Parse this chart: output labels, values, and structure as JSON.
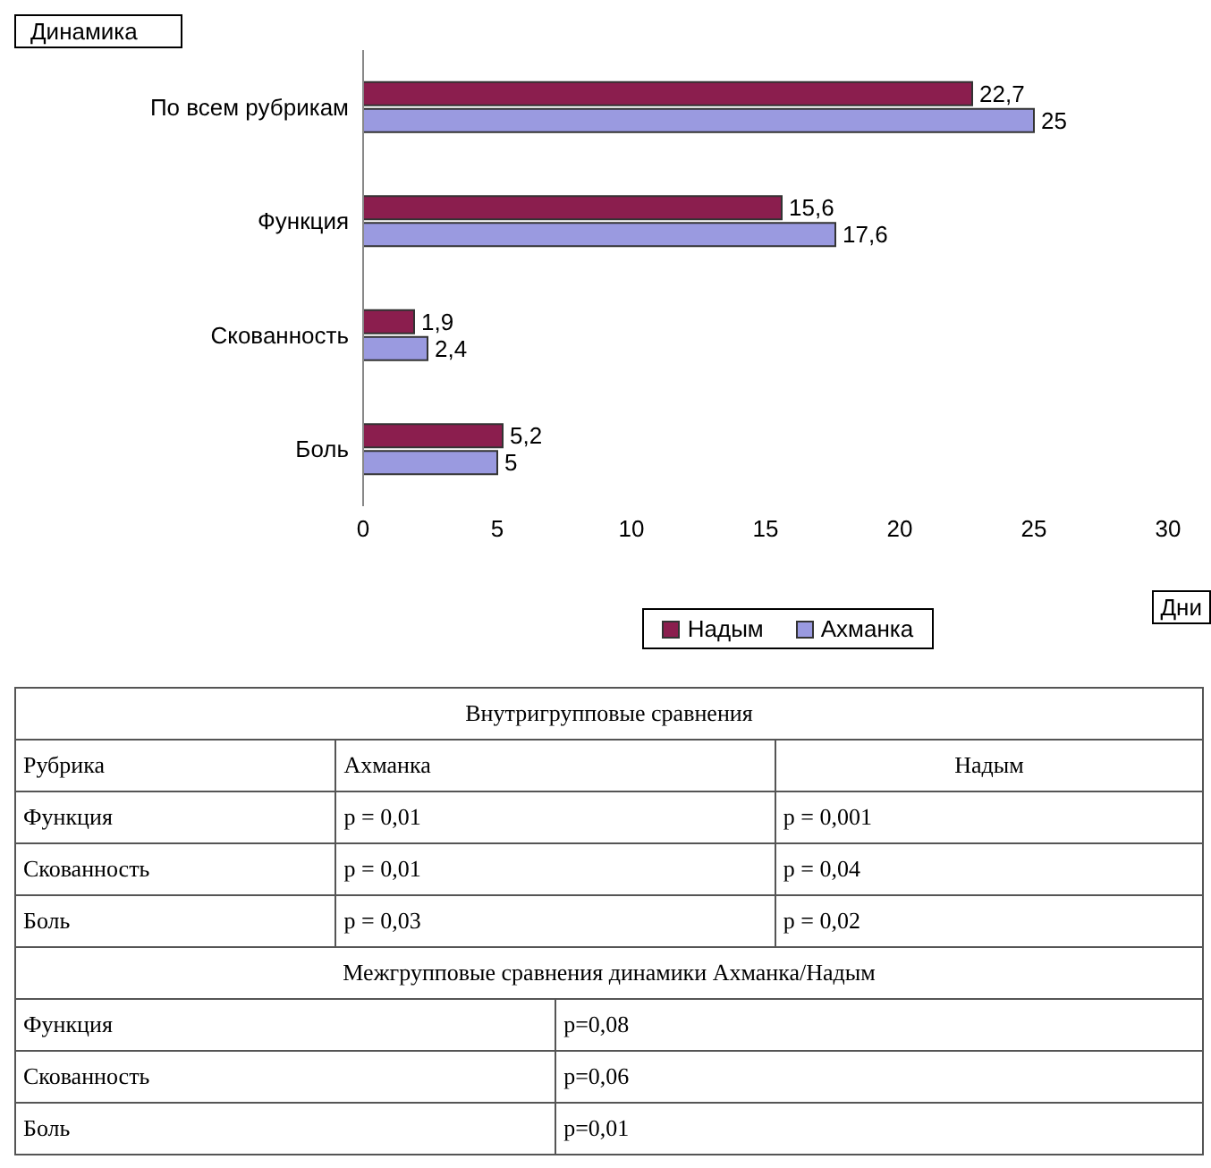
{
  "chart_data": {
    "type": "bar",
    "orientation": "horizontal",
    "title": "Динамика",
    "xlabel": "Дни",
    "categories": [
      "По всем рубрикам",
      "Функция",
      "Скованность",
      "Боль"
    ],
    "series": [
      {
        "name": "Надым",
        "color": "#8b1e4e",
        "values": [
          22.7,
          15.6,
          1.9,
          5.2
        ],
        "value_labels": [
          "22,7",
          "15,6",
          "1,9",
          "5,2"
        ]
      },
      {
        "name": "Ахманка",
        "color": "#9a9ae0",
        "values": [
          25,
          17.6,
          2.4,
          5
        ],
        "value_labels": [
          "25",
          "17,6",
          "2,4",
          "5"
        ]
      }
    ],
    "xlim": [
      0,
      30
    ],
    "xticks": [
      0,
      5,
      10,
      15,
      20,
      25,
      30
    ],
    "grid": false,
    "legend": "bottom",
    "annotations": [
      "Внутригрупповые сравнения",
      "Рубрика",
      "Ахманка",
      "Надым",
      "Функция",
      "p = 0,01",
      "p = 0,001",
      "Скованность",
      "p = 0,01",
      "p = 0,04",
      "Боль",
      "p = 0,03",
      "p = 0,02",
      "Межгрупповые сравнения динамики Ахманка/Надым",
      "Функция",
      "p=0,08",
      "Скованность",
      "p=0,06",
      "Боль",
      "p=0,01"
    ]
  }
}
